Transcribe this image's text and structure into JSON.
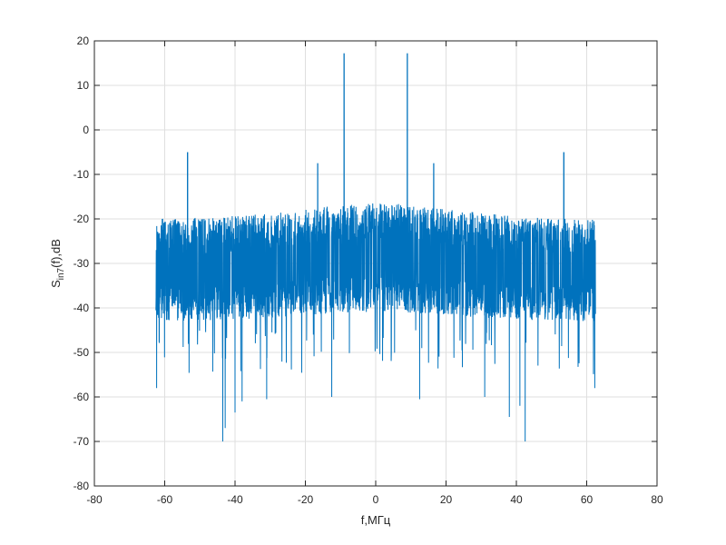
{
  "chart_data": {
    "type": "line",
    "xlabel": "f,МГц",
    "ylabel": {
      "base": "S",
      "sub": "in7",
      "rest": "(f),dB"
    },
    "xlim": [
      -80,
      80
    ],
    "ylim": [
      -80,
      20
    ],
    "xticks": [
      -80,
      -60,
      -40,
      -20,
      0,
      20,
      40,
      60,
      80
    ],
    "yticks": [
      -80,
      -70,
      -60,
      -50,
      -40,
      -30,
      -20,
      -10,
      0,
      10,
      20
    ],
    "xtick_labels": [
      "-80",
      "-60",
      "-40",
      "-20",
      "0",
      "20",
      "40",
      "60",
      "80"
    ],
    "ytick_labels": [
      "-80",
      "-70",
      "-60",
      "-50",
      "-40",
      "-30",
      "-20",
      "-10",
      "0",
      "10",
      "20"
    ],
    "grid": true,
    "line_color": "#0072bd",
    "series": [
      {
        "x_range": [
          -62.5,
          62.5
        ],
        "noise_floor_db": -30,
        "noise_top_db": -20,
        "noise_bottom_db": -43,
        "peaks": [
          {
            "x": -53.5,
            "y": -5
          },
          {
            "x": -16.5,
            "y": -7.5
          },
          {
            "x": -9,
            "y": 17.2
          },
          {
            "x": 9,
            "y": 17.2
          },
          {
            "x": 16.5,
            "y": -7.5
          },
          {
            "x": 53.5,
            "y": -5
          }
        ],
        "dips": [
          {
            "x": -43.5,
            "y": -70
          },
          {
            "x": -42.8,
            "y": -67
          },
          {
            "x": -40,
            "y": -63.5
          },
          {
            "x": -38,
            "y": -61
          },
          {
            "x": -31,
            "y": -60.5
          },
          {
            "x": -12.5,
            "y": -60
          },
          {
            "x": 38,
            "y": -64.5
          },
          {
            "x": 42.5,
            "y": -70
          },
          {
            "x": 41,
            "y": -62
          },
          {
            "x": 31,
            "y": -60
          },
          {
            "x": 12.5,
            "y": -60.5
          },
          {
            "x": -62.3,
            "y": -58
          },
          {
            "x": 62.3,
            "y": -58
          }
        ]
      }
    ]
  }
}
